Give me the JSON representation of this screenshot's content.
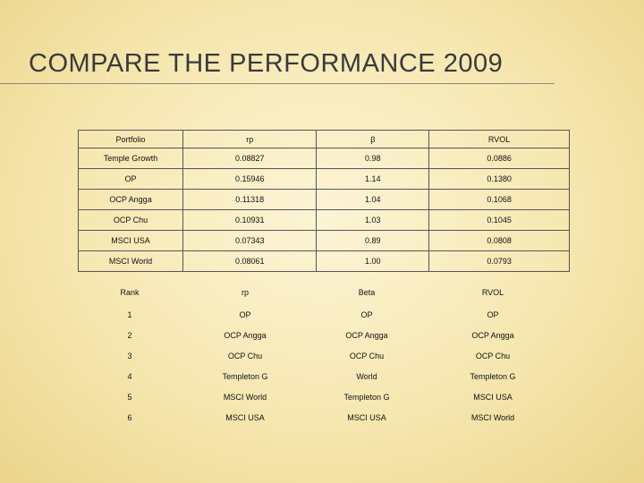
{
  "slide": {
    "title": "COMPARE THE PERFORMANCE 2009"
  },
  "performance_table": {
    "headers": [
      "Portfolio",
      "rp",
      "β",
      "RVOL"
    ],
    "rows": [
      [
        "Temple Growth",
        "0.08827",
        "0.98",
        "0.0886"
      ],
      [
        "OP",
        "0.15946",
        "1.14",
        "0.1380"
      ],
      [
        "OCP Angga",
        "0.11318",
        "1.04",
        "0.1068"
      ],
      [
        "OCP Chu",
        "0.10931",
        "1.03",
        "0.1045"
      ],
      [
        "MSCI USA",
        "0.07343",
        "0.89",
        "0.0808"
      ],
      [
        "MSCI World",
        "0.08061",
        "1.00",
        "0.0793"
      ]
    ]
  },
  "rank_table": {
    "headers": [
      "Rank",
      "rp",
      "Beta",
      "RVOL"
    ],
    "rows": [
      [
        "1",
        "OP",
        "OP",
        "OP"
      ],
      [
        "2",
        "OCP Angga",
        "OCP Angga",
        "OCP Angga"
      ],
      [
        "3",
        "OCP Chu",
        "OCP Chu",
        "OCP Chu"
      ],
      [
        "4",
        "Templeton G",
        "World",
        "Templeton G"
      ],
      [
        "5",
        "MSCI World",
        "Templeton G",
        "MSCI USA"
      ],
      [
        "6",
        "MSCI USA",
        "MSCI USA",
        "MSCI World"
      ]
    ]
  }
}
